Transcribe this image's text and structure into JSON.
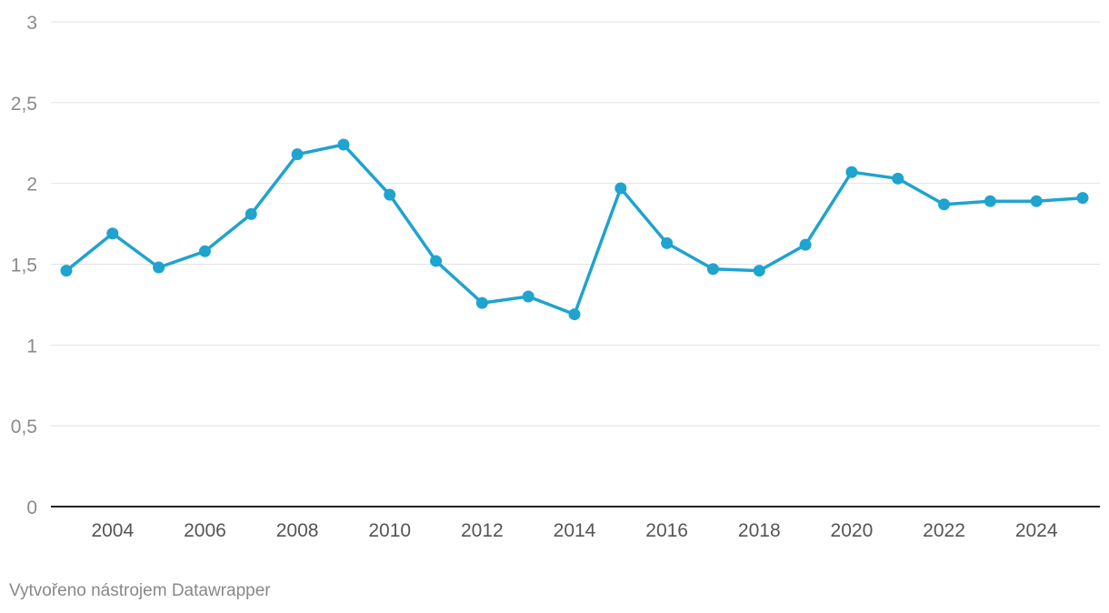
{
  "chart_data": {
    "type": "line",
    "title": "",
    "xlabel": "",
    "ylabel": "",
    "x": [
      2003,
      2004,
      2005,
      2006,
      2007,
      2008,
      2009,
      2010,
      2011,
      2012,
      2013,
      2014,
      2015,
      2016,
      2017,
      2018,
      2019,
      2020,
      2021,
      2022,
      2023,
      2024,
      2025
    ],
    "series": [
      {
        "values": [
          1.46,
          1.69,
          1.48,
          1.58,
          1.81,
          2.18,
          2.24,
          1.93,
          1.52,
          1.26,
          1.3,
          1.19,
          1.97,
          1.63,
          1.47,
          1.46,
          1.62,
          2.07,
          2.03,
          1.87,
          1.89,
          1.89,
          1.91
        ],
        "color": "#1fa3cf"
      }
    ],
    "xlim": [
      2003,
      2025
    ],
    "ylim": [
      0,
      3
    ],
    "y_ticks": [
      "0",
      "0,5",
      "1",
      "1,5",
      "2",
      "2,5",
      "3"
    ],
    "y_tick_values": [
      0,
      0.5,
      1,
      1.5,
      2,
      2.5,
      3
    ],
    "x_ticks": [
      "2004",
      "2006",
      "2008",
      "2010",
      "2012",
      "2014",
      "2016",
      "2018",
      "2020",
      "2022",
      "2024"
    ],
    "x_tick_values": [
      2004,
      2006,
      2008,
      2010,
      2012,
      2014,
      2016,
      2018,
      2020,
      2022,
      2024
    ],
    "grid": true,
    "legend": "none"
  },
  "footer": {
    "credit": "Vytvořeno nástrojem Datawrapper"
  }
}
